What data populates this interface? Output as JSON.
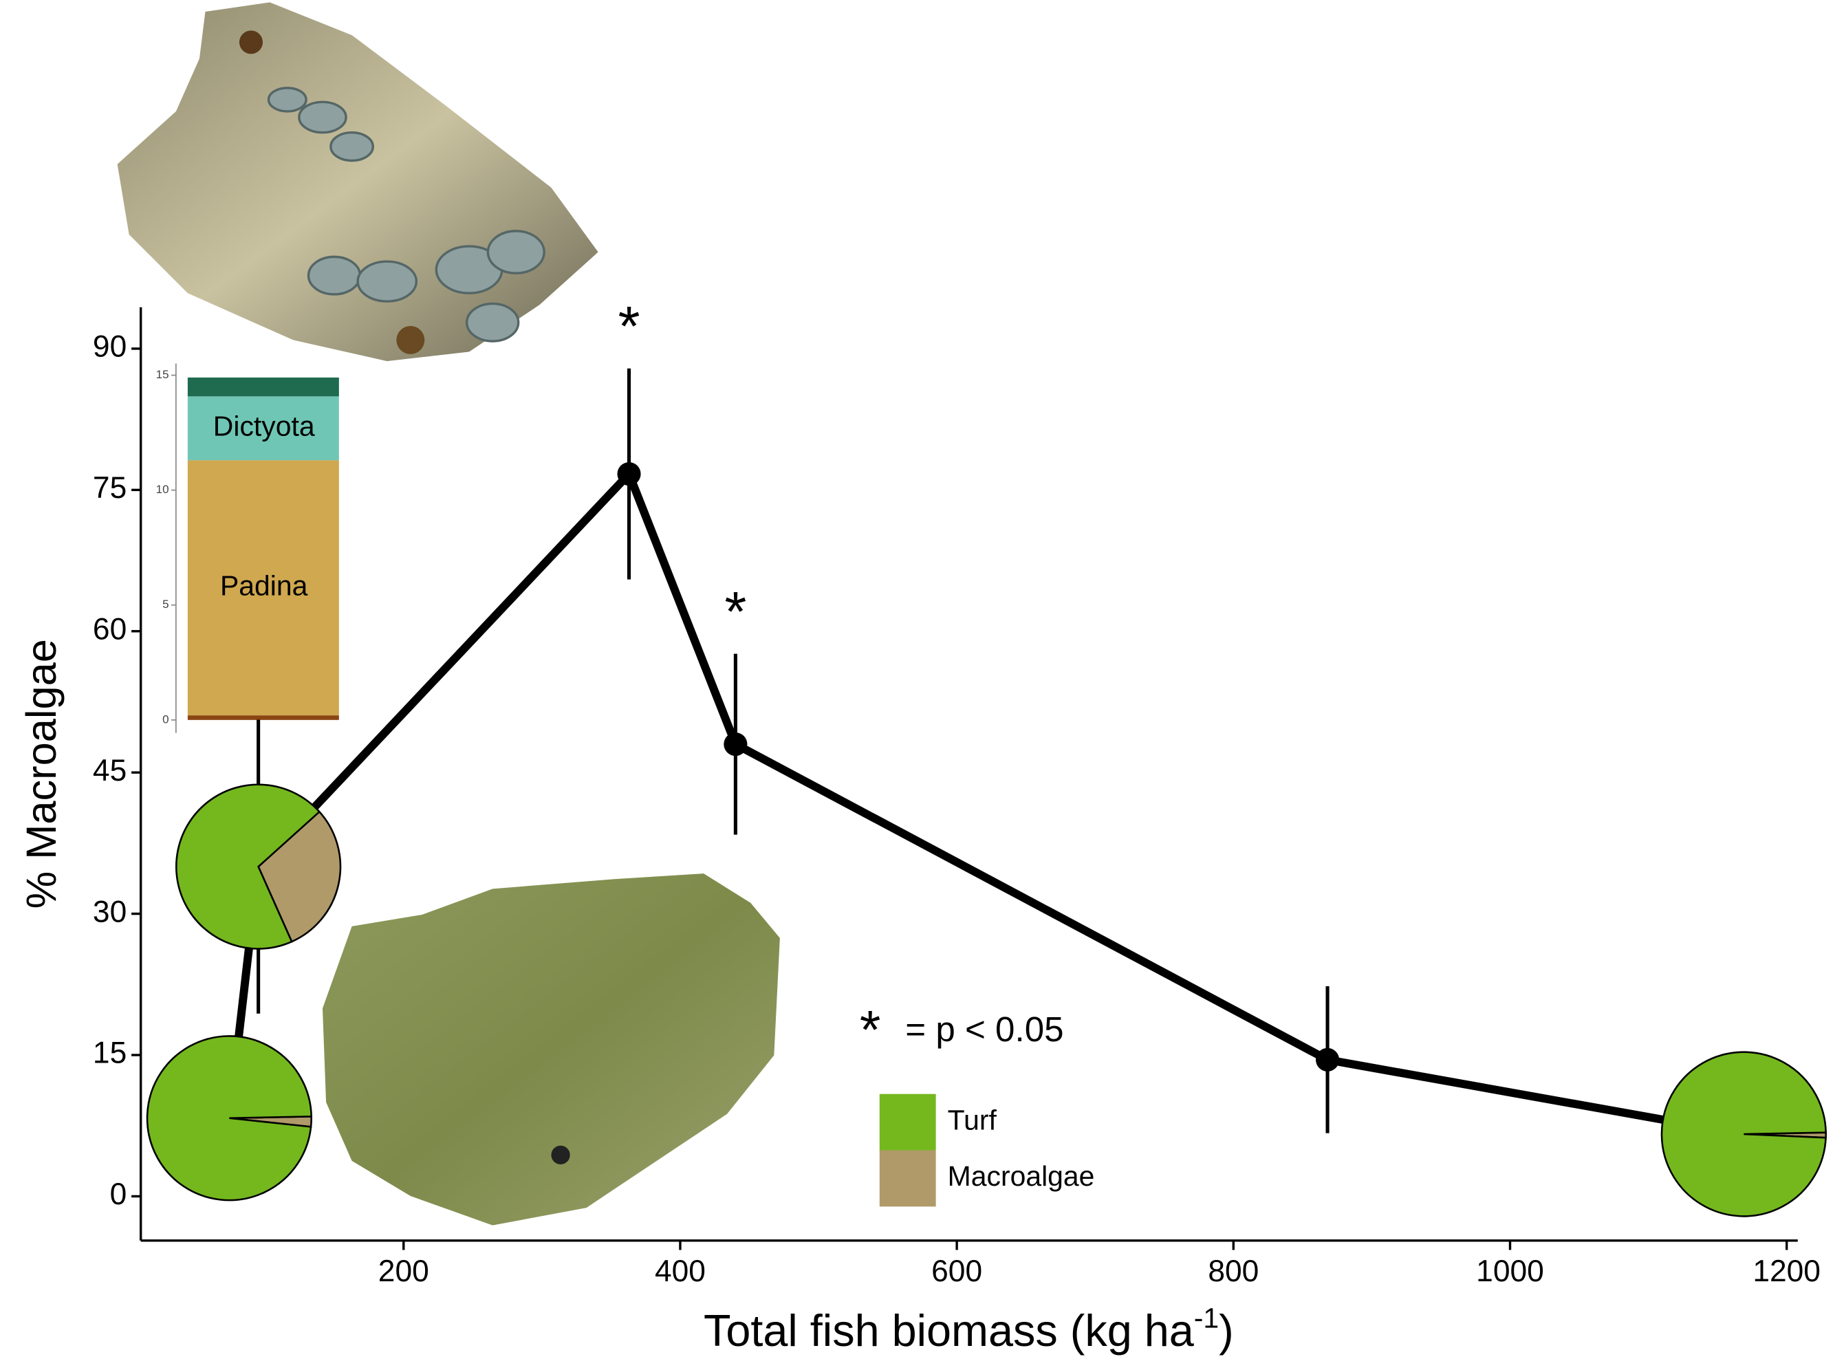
{
  "chart_data": {
    "type": "line",
    "y_label": "% Macroalgae",
    "x_label": [
      "Total fish biomass (kg ha",
      "-1",
      ")"
    ],
    "x": [
      74,
      95,
      363,
      440,
      868,
      1169
    ],
    "series": [
      {
        "color": "#000000",
        "values": [
          8.3,
          35,
          76.7,
          48,
          14.5,
          6.6
        ],
        "errors": [
          null,
          15.6,
          11.2,
          9.6,
          7.8,
          null
        ]
      }
    ],
    "xlim": [
      10,
      1208
    ],
    "xticks": [
      200,
      400,
      600,
      800,
      1000,
      1200
    ],
    "ylim": [
      -4.7,
      94.4
    ],
    "yticks": [
      0,
      15,
      30,
      45,
      60,
      75,
      90
    ],
    "annotations": [
      "*",
      "*"
    ],
    "significance_note": [
      "*",
      "= p < 0.05"
    ],
    "pies": {
      "names": [
        "Turf",
        "Macroalgae"
      ],
      "colors": [
        "#74b81e",
        "#b09a6a"
      ],
      "points": [
        0,
        1,
        5
      ],
      "values": [
        [
          98,
          2
        ],
        [
          70,
          30
        ],
        [
          99,
          1
        ]
      ]
    },
    "inset": {
      "type": "stacked-bar",
      "ylim": [
        0,
        15
      ],
      "yticks": [
        0,
        5,
        10,
        15
      ],
      "series": [
        {
          "name": null,
          "color": "#8b4513",
          "values": [
            0.2
          ]
        },
        {
          "name": "Padina",
          "color": "#cfa84f",
          "values": [
            11.1
          ]
        },
        {
          "name": "Dictyota",
          "color": "#6fc6b4",
          "values": [
            2.78
          ]
        },
        {
          "name": null,
          "color": "#1e6b50",
          "values": [
            0.82
          ]
        }
      ]
    }
  }
}
